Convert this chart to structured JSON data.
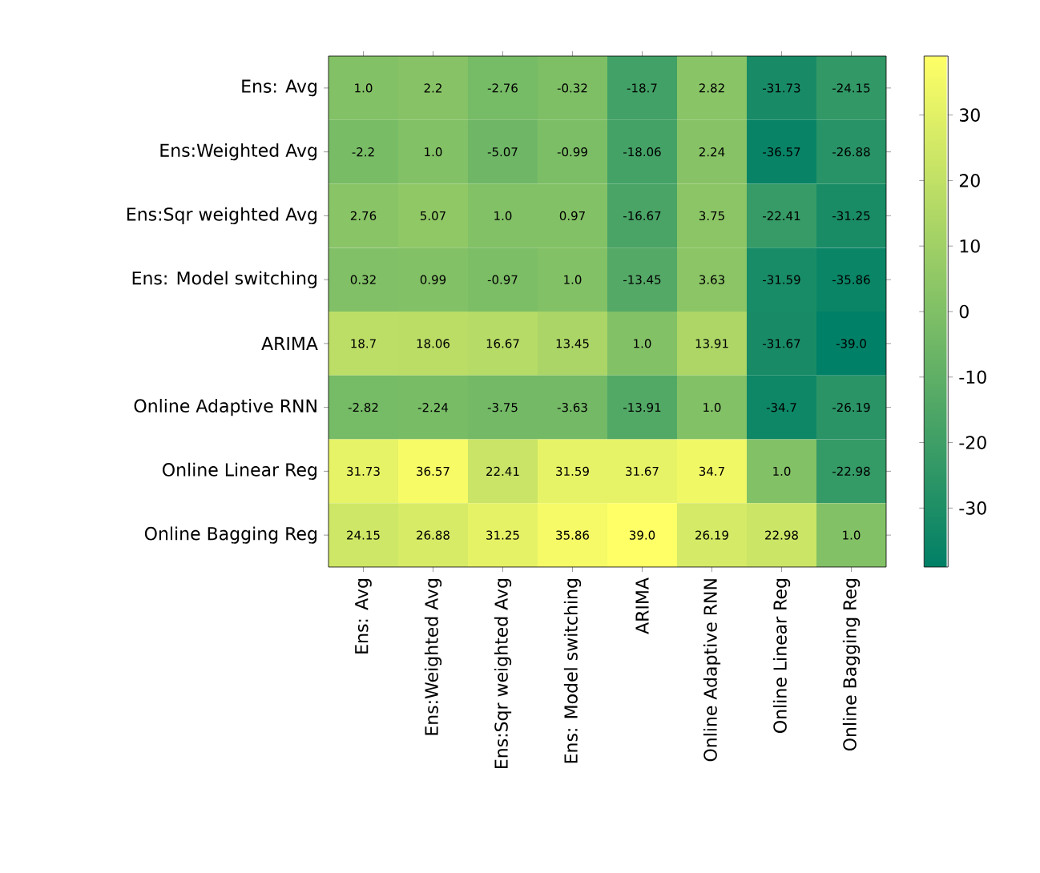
{
  "chart_data": {
    "type": "heatmap",
    "categories": [
      "Ens: Avg",
      "Ens:Weighted Avg",
      "Ens:Sqr weighted Avg",
      "Ens: Model switching",
      "ARIMA",
      "Online Adaptive RNN",
      "Online Linear Reg",
      "Online Bagging Reg"
    ],
    "y_categories": [
      "Ens: Avg",
      "Ens:Weighted Avg",
      "Ens:Sqr weighted Avg",
      "Ens: Model switching",
      "ARIMA",
      "Online Adaptive RNN",
      "Online Linear Reg",
      "Online Bagging Reg"
    ],
    "cells": [
      [
        1.0,
        2.2,
        -2.76,
        -0.32,
        -18.7,
        2.82,
        -31.73,
        -24.15
      ],
      [
        -2.2,
        1.0,
        -5.07,
        -0.99,
        -18.06,
        2.24,
        -36.57,
        -26.88
      ],
      [
        2.76,
        5.07,
        1.0,
        0.97,
        -16.67,
        3.75,
        -22.41,
        -31.25
      ],
      [
        0.32,
        0.99,
        -0.97,
        1.0,
        -13.45,
        3.63,
        -31.59,
        -35.86
      ],
      [
        18.7,
        18.06,
        16.67,
        13.45,
        1.0,
        13.91,
        -31.67,
        -39.0
      ],
      [
        -2.82,
        -2.24,
        -3.75,
        -3.63,
        -13.91,
        1.0,
        -34.7,
        -26.19
      ],
      [
        31.73,
        36.57,
        22.41,
        31.59,
        31.67,
        34.7,
        1.0,
        -22.98
      ],
      [
        24.15,
        26.88,
        31.25,
        35.86,
        39.0,
        26.19,
        22.98,
        1.0
      ]
    ],
    "cell_labels": [
      [
        "1.0",
        "2.2",
        "-2.76",
        "-0.32",
        "-18.7",
        "2.82",
        "-31.73",
        "-24.15"
      ],
      [
        "-2.2",
        "1.0",
        "-5.07",
        "-0.99",
        "-18.06",
        "2.24",
        "-36.57",
        "-26.88"
      ],
      [
        "2.76",
        "5.07",
        "1.0",
        "0.97",
        "-16.67",
        "3.75",
        "-22.41",
        "-31.25"
      ],
      [
        "0.32",
        "0.99",
        "-0.97",
        "1.0",
        "-13.45",
        "3.63",
        "-31.59",
        "-35.86"
      ],
      [
        "18.7",
        "18.06",
        "16.67",
        "13.45",
        "1.0",
        "13.91",
        "-31.67",
        "-39.0"
      ],
      [
        "-2.82",
        "-2.24",
        "-3.75",
        "-3.63",
        "-13.91",
        "1.0",
        "-34.7",
        "-26.19"
      ],
      [
        "31.73",
        "36.57",
        "22.41",
        "31.59",
        "31.67",
        "34.7",
        "1.0",
        "-22.98"
      ],
      [
        "24.15",
        "26.88",
        "31.25",
        "35.86",
        "39.0",
        "26.19",
        "22.98",
        "1.0"
      ]
    ],
    "clim": [
      -39.0,
      39.0
    ],
    "cticks": [
      -30,
      -20,
      -10,
      0,
      10,
      20,
      30
    ]
  }
}
